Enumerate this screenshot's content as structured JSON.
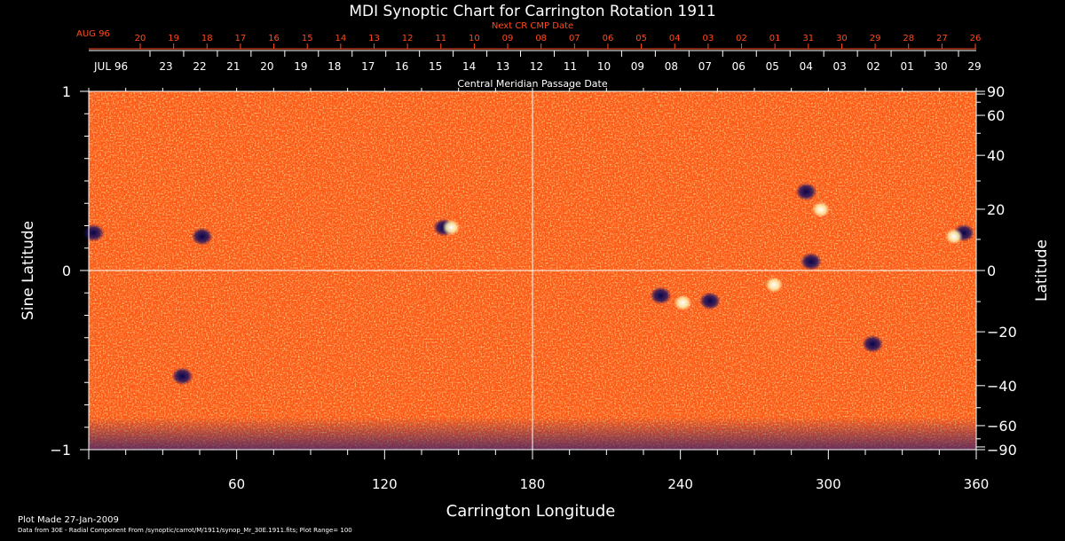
{
  "chart_data": {
    "type": "heatmap",
    "title": "MDI Synoptic Chart for Carrington Rotation 1911",
    "xlabel": "Carrington Longitude",
    "ylabel_left": "Sine Latitude",
    "ylabel_right": "Latitude",
    "xlim": [
      0,
      360
    ],
    "ylim": [
      -1,
      1
    ],
    "x_ticks": [
      60,
      120,
      180,
      240,
      300,
      360
    ],
    "left_ticks": [
      {
        "value": 1,
        "label": "1"
      },
      {
        "value": 0,
        "label": "0"
      },
      {
        "value": -1,
        "label": "−1"
      }
    ],
    "right_ticks": [
      {
        "lat": 90,
        "label": "90"
      },
      {
        "lat": 60,
        "label": "60"
      },
      {
        "lat": 40,
        "label": "40"
      },
      {
        "lat": 20,
        "label": "20"
      },
      {
        "lat": 0,
        "label": "0"
      },
      {
        "lat": -20,
        "label": "−20"
      },
      {
        "lat": -40,
        "label": "−40"
      },
      {
        "lat": -60,
        "label": "−60"
      },
      {
        "lat": -90,
        "label": "−90"
      }
    ],
    "next_cr_label": "Next CR CMP Date",
    "next_cr_month": "AUG 96",
    "next_cr_dates": [
      "20",
      "19",
      "18",
      "17",
      "16",
      "15",
      "14",
      "13",
      "12",
      "11",
      "10",
      "09",
      "08",
      "07",
      "06",
      "05",
      "04",
      "03",
      "02",
      "01",
      "31",
      "30",
      "29",
      "28",
      "27",
      "26"
    ],
    "cmp_label": "Central Meridian Passage Date",
    "cmp_month": "JUL 96",
    "cmp_dates": [
      "23",
      "22",
      "21",
      "20",
      "19",
      "18",
      "17",
      "16",
      "15",
      "14",
      "13",
      "12",
      "11",
      "10",
      "09",
      "08",
      "07",
      "06",
      "05",
      "04",
      "03",
      "02",
      "01",
      "30",
      "29"
    ],
    "center_lines": {
      "longitude": 180,
      "sine_latitude": 0
    },
    "background_color": "#ff5a14",
    "colors": {
      "positive": "#fff2b0",
      "negative": "#10106a",
      "date_top": "#ff4a1c"
    },
    "regions": [
      {
        "lon": 291,
        "lat_sine": 0.44,
        "polarity": "negative"
      },
      {
        "lon": 297,
        "lat_sine": 0.34,
        "polarity": "positive"
      },
      {
        "lon": 355,
        "lat_sine": 0.21,
        "polarity": "negative"
      },
      {
        "lon": 351,
        "lat_sine": 0.19,
        "polarity": "positive"
      },
      {
        "lon": 293,
        "lat_sine": 0.05,
        "polarity": "negative"
      },
      {
        "lon": 232,
        "lat_sine": -0.14,
        "polarity": "negative"
      },
      {
        "lon": 241,
        "lat_sine": -0.18,
        "polarity": "positive"
      },
      {
        "lon": 252,
        "lat_sine": -0.17,
        "polarity": "negative"
      },
      {
        "lon": 278,
        "lat_sine": -0.08,
        "polarity": "positive"
      },
      {
        "lon": 46,
        "lat_sine": 0.19,
        "polarity": "negative"
      },
      {
        "lon": 144,
        "lat_sine": 0.24,
        "polarity": "negative"
      },
      {
        "lon": 147,
        "lat_sine": 0.24,
        "polarity": "positive"
      },
      {
        "lon": 2,
        "lat_sine": 0.21,
        "polarity": "negative"
      },
      {
        "lon": 38,
        "lat_sine": -0.59,
        "polarity": "negative"
      },
      {
        "lon": 318,
        "lat_sine": -0.41,
        "polarity": "negative"
      }
    ]
  },
  "footer": {
    "plot_made": "Plot Made 27-Jan-2009",
    "data_from": "Data from 30E - Radial Component From /synoptic/carrot/M/1911/synop_Mr_30E.1911.fits; Plot Range=  100"
  }
}
